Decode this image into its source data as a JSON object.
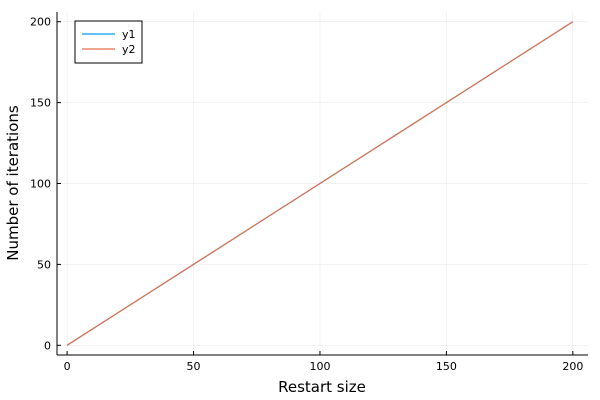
{
  "chart_data": {
    "type": "line",
    "title": "",
    "xlabel": "Restart size",
    "ylabel": "Number of iterations",
    "xlim": [
      -4,
      206
    ],
    "ylim": [
      -6,
      206
    ],
    "xticks": [
      0,
      50,
      100,
      150,
      200
    ],
    "yticks": [
      0,
      50,
      100,
      150,
      200
    ],
    "grid": true,
    "legend_position": "top-left",
    "series": [
      {
        "name": "y1",
        "color": "#009AFA",
        "x": [
          0,
          200
        ],
        "y": [
          0,
          200
        ]
      },
      {
        "name": "y2",
        "color": "#E36F47",
        "x": [
          0,
          200
        ],
        "y": [
          0,
          200
        ]
      }
    ]
  }
}
